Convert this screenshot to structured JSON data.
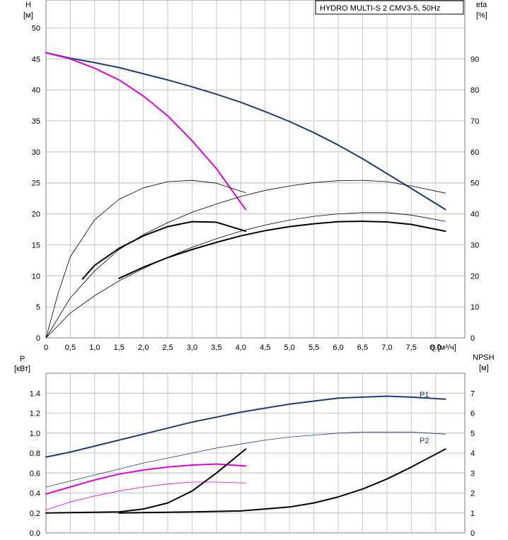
{
  "chart_data": [
    {
      "type": "line",
      "title": "HYDRO MULTI-S 2 CMV3-5, 50Hz",
      "xlabel": "Q [м³/ч]",
      "xlim": [
        0,
        8.6
      ],
      "x_ticks": [
        "0",
        "0,5",
        "1,0",
        "1,5",
        "2,0",
        "2,5",
        "3,0",
        "3,5",
        "4,0",
        "4,5",
        "5,0",
        "5,5",
        "6,0",
        "6,5",
        "7,0",
        "7,5",
        "8,0"
      ],
      "y_left": {
        "label_line1": "H",
        "label_line2": "[м]",
        "ylim": [
          0,
          54.5
        ],
        "ticks": [
          "0",
          "5",
          "10",
          "15",
          "20",
          "25",
          "30",
          "35",
          "40",
          "45",
          "50"
        ]
      },
      "y_right": {
        "label_line1": "eta",
        "label_line2": "[%]",
        "ylim": [
          0,
          109
        ],
        "ticks": [
          "0",
          "10",
          "20",
          "30",
          "40",
          "50",
          "60",
          "70",
          "80",
          "90"
        ]
      },
      "grid": true,
      "series": [
        {
          "axis": "left",
          "color": "#1a3f75",
          "width": 2,
          "x": [
            0,
            0.5,
            1.0,
            1.5,
            2.0,
            2.5,
            3.0,
            3.5,
            4.0,
            4.5,
            5.0,
            5.5,
            6.0,
            6.5,
            7.0,
            7.5,
            8.2
          ],
          "y": [
            46,
            45.1,
            44.4,
            43.6,
            42.6,
            41.6,
            40.5,
            39.3,
            38.0,
            36.5,
            34.9,
            33.1,
            31.1,
            28.9,
            26.5,
            24.1,
            20.7
          ]
        },
        {
          "axis": "left",
          "color": "#e000e0",
          "width": 2,
          "x": [
            0,
            0.5,
            1.0,
            1.5,
            2.0,
            2.5,
            3.0,
            3.5,
            4.1
          ],
          "y": [
            46,
            45.0,
            43.5,
            41.6,
            39.0,
            35.8,
            31.8,
            27.3,
            20.7
          ]
        },
        {
          "axis": "right",
          "color": "#000000",
          "width": 0.8,
          "x": [
            0,
            0.25,
            0.5,
            1.0,
            1.5,
            2.0,
            2.5,
            3.0,
            3.5,
            4.1
          ],
          "y": [
            0,
            14.4,
            26.2,
            38.1,
            44.7,
            48.4,
            50.4,
            50.8,
            49.9,
            46.8
          ]
        },
        {
          "axis": "right",
          "color": "#000000",
          "width": 0.8,
          "x": [
            0,
            0.5,
            1.0,
            1.5,
            2.0,
            2.5,
            3.0,
            3.5,
            4.0,
            4.5,
            5.0,
            5.5,
            6.0,
            6.5,
            7.0,
            7.5,
            8.2
          ],
          "y": [
            0,
            12.9,
            21.6,
            28.5,
            33.3,
            37.2,
            40.5,
            43.2,
            45.6,
            47.6,
            49.0,
            50.1,
            50.7,
            50.8,
            50.4,
            49.0,
            46.7
          ]
        },
        {
          "axis": "right",
          "color": "#000000",
          "width": 0.8,
          "x": [
            0,
            0.5,
            1.0,
            1.5,
            2.0,
            2.5,
            3.0,
            3.5,
            4.0,
            4.5,
            5.0,
            5.5,
            6.0,
            6.5,
            7.0,
            7.5,
            8.2
          ],
          "y": [
            0,
            8.0,
            13.6,
            18.4,
            22.4,
            26.0,
            29.2,
            32.0,
            34.4,
            36.4,
            38.0,
            39.2,
            40.0,
            40.4,
            40.4,
            39.6,
            37.6
          ]
        },
        {
          "axis": "right",
          "color": "#000000",
          "width": 2,
          "x": [
            0.75,
            1.0,
            1.5,
            2.0,
            2.5,
            3.0,
            3.5,
            4.1
          ],
          "y": [
            19.0,
            23.4,
            28.9,
            32.9,
            35.9,
            37.5,
            37.3,
            34.4
          ]
        },
        {
          "axis": "right",
          "color": "#000000",
          "width": 2,
          "x": [
            1.5,
            2.0,
            2.5,
            3.0,
            3.5,
            4.0,
            4.5,
            5.0,
            5.5,
            6.0,
            6.5,
            7.0,
            7.5,
            8.2
          ],
          "y": [
            19.2,
            22.8,
            25.9,
            28.5,
            30.8,
            32.9,
            34.6,
            35.9,
            36.8,
            37.5,
            37.6,
            37.4,
            36.6,
            34.4
          ]
        }
      ]
    },
    {
      "type": "line",
      "xlim": [
        0,
        8.6
      ],
      "y_left": {
        "label_line1": "P",
        "label_line2": "[кВт]",
        "ylim": [
          0,
          1.6
        ],
        "ticks": [
          "0.0",
          "0.2",
          "0.4",
          "0.6",
          "0.8",
          "1.0",
          "1.2",
          "1.4"
        ]
      },
      "y_right": {
        "label_line1": "NPSH",
        "label_line2": "[м]",
        "ylim": [
          0,
          8
        ],
        "ticks": [
          "0",
          "1",
          "2",
          "3",
          "4",
          "5",
          "6",
          "7"
        ]
      },
      "grid": true,
      "series": [
        {
          "name": "P1",
          "axis": "left",
          "color": "#1a3f75",
          "width": 2,
          "x": [
            0,
            0.5,
            1.0,
            1.5,
            2.0,
            2.5,
            3.0,
            3.5,
            4.0,
            4.5,
            5.0,
            5.5,
            6.0,
            6.5,
            7.0,
            7.5,
            8.2
          ],
          "y": [
            0.76,
            0.81,
            0.87,
            0.93,
            0.99,
            1.05,
            1.11,
            1.16,
            1.21,
            1.25,
            1.29,
            1.32,
            1.35,
            1.36,
            1.37,
            1.36,
            1.34
          ]
        },
        {
          "name": "P2",
          "axis": "left",
          "color": "#1a3f75",
          "width": 0.8,
          "x": [
            0,
            0.5,
            1.0,
            1.5,
            2.0,
            2.5,
            3.0,
            3.5,
            4.0,
            4.5,
            5.0,
            5.5,
            6.0,
            6.5,
            7.0,
            7.5,
            8.2
          ],
          "y": [
            0.46,
            0.52,
            0.58,
            0.64,
            0.7,
            0.75,
            0.8,
            0.85,
            0.89,
            0.93,
            0.96,
            0.98,
            1.0,
            1.01,
            1.01,
            1.01,
            0.99
          ]
        },
        {
          "axis": "left",
          "color": "#e000e0",
          "width": 2,
          "x": [
            0,
            0.5,
            1.0,
            1.5,
            2.0,
            2.5,
            3.0,
            3.5,
            4.1
          ],
          "y": [
            0.39,
            0.46,
            0.53,
            0.59,
            0.63,
            0.66,
            0.68,
            0.69,
            0.67
          ]
        },
        {
          "axis": "left",
          "color": "#e000e0",
          "width": 0.8,
          "x": [
            0,
            0.5,
            1.0,
            1.5,
            2.0,
            2.5,
            3.0,
            3.5,
            4.1
          ],
          "y": [
            0.23,
            0.31,
            0.37,
            0.42,
            0.46,
            0.49,
            0.51,
            0.51,
            0.5
          ]
        },
        {
          "axis": "right",
          "color": "#000000",
          "width": 2,
          "x": [
            0,
            1.5,
            2.0,
            2.5,
            3.0,
            3.5,
            3.8,
            4.1
          ],
          "y": [
            1.0,
            1.05,
            1.2,
            1.5,
            2.1,
            3.0,
            3.6,
            4.2
          ]
        },
        {
          "axis": "right",
          "color": "#000000",
          "width": 2,
          "x": [
            1.5,
            2.0,
            3.0,
            4.0,
            5.0,
            5.5,
            6.0,
            6.5,
            7.0,
            7.5,
            8.2
          ],
          "y": [
            1.0,
            1.02,
            1.05,
            1.1,
            1.3,
            1.5,
            1.8,
            2.2,
            2.7,
            3.3,
            4.2
          ]
        }
      ]
    }
  ]
}
